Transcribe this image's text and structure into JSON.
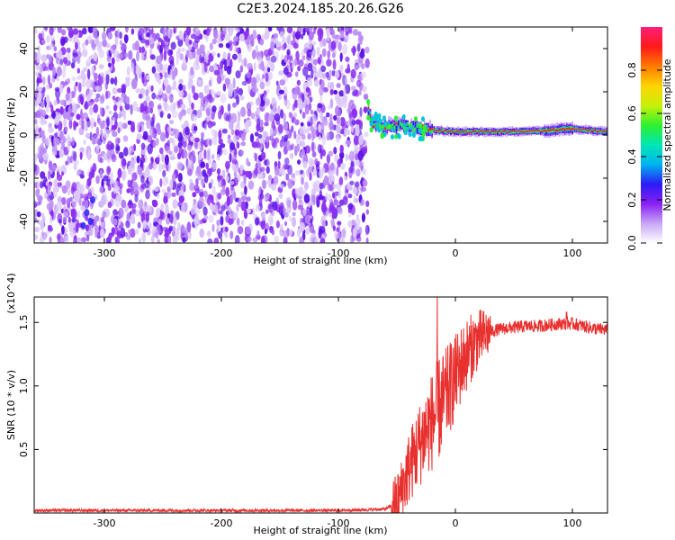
{
  "title": "C2E3.2024.185.20.26.G26",
  "colors": {
    "snr_line": "#e8302e",
    "dots": "#7b1fe8",
    "signal_core": "#e8324a"
  },
  "chart_data": [
    {
      "type": "heatmap",
      "xlabel": "Height of straight line (km)",
      "ylabel": "Frequency (Hz)",
      "xlim": [
        -360,
        130
      ],
      "ylim": [
        -50,
        50
      ],
      "xticks": [
        -300,
        -200,
        -100,
        0,
        100
      ],
      "yticks": [
        -40,
        -20,
        0,
        20,
        40
      ],
      "colorbar": {
        "label": "Normalized spectral amplitude",
        "range": [
          0,
          1
        ],
        "ticks": [
          0.0,
          0.2,
          0.4,
          0.6,
          0.8
        ],
        "colormap": [
          "#ffffff",
          "#c7a6f7",
          "#8a1ff2",
          "#2a1cf5",
          "#00b4f0",
          "#00e6b4",
          "#2ef02e",
          "#c8f00a",
          "#ffd400",
          "#ff7a00",
          "#ff1a1a",
          "#ff1f7a"
        ]
      },
      "noise_region_x": [
        -360,
        -75
      ],
      "signal_track": [
        {
          "x": -75,
          "y": 12
        },
        {
          "x": -72,
          "y": 5
        },
        {
          "x": -60,
          "y": 4
        },
        {
          "x": -45,
          "y": 4
        },
        {
          "x": -30,
          "y": 3
        },
        {
          "x": -15,
          "y": 2
        },
        {
          "x": 0,
          "y": 1.5
        },
        {
          "x": 40,
          "y": 1.5
        },
        {
          "x": 80,
          "y": 2
        },
        {
          "x": 95,
          "y": 3
        },
        {
          "x": 130,
          "y": 1.5
        }
      ]
    },
    {
      "type": "line",
      "xlabel": "Height of straight line (km)",
      "ylabel": "SNR (10 * v/v)",
      "y_multiplier": "(x10^4)",
      "xlim": [
        -360,
        130
      ],
      "ylim": [
        0,
        1.7
      ],
      "xticks": [
        -300,
        -200,
        -100,
        0,
        100
      ],
      "yticks": [
        0.5,
        1.0,
        1.5
      ],
      "series": [
        {
          "x": [
            -360,
            -300,
            -200,
            -100,
            -60,
            -50,
            -45,
            -40,
            -35,
            -30,
            -25,
            -20,
            -15,
            -10,
            -5,
            0,
            5,
            10,
            15,
            20,
            25,
            30,
            35,
            40,
            50,
            60,
            70,
            80,
            90,
            100,
            110,
            120,
            130
          ],
          "y": [
            0.02,
            0.02,
            0.02,
            0.02,
            0.03,
            0.08,
            0.2,
            0.35,
            0.45,
            0.55,
            0.65,
            0.72,
            0.8,
            0.88,
            0.98,
            1.07,
            1.17,
            1.25,
            1.32,
            1.37,
            1.4,
            1.43,
            1.44,
            1.45,
            1.46,
            1.47,
            1.47,
            1.48,
            1.49,
            1.49,
            1.47,
            1.45,
            1.44
          ]
        }
      ]
    }
  ]
}
